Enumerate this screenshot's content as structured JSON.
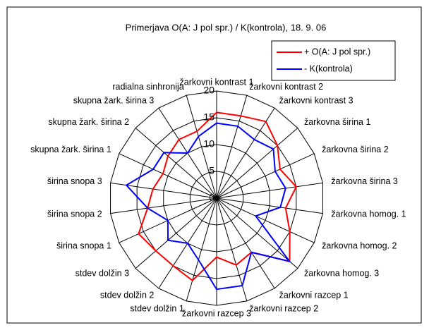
{
  "chart_data": {
    "type": "radar",
    "title": "Primerjava O(A: J pol spr.) / K(kontrola), 18. 9. 06",
    "categories": [
      "žarkovni kontrast 1",
      "žarkovni kontrast 2",
      "žarkovni kontrast 3",
      "žarkovna širina 1",
      "žarkovna širina 2",
      "žarkovna širina 3",
      "žarkovna homog. 1",
      "žarkovna homog. 2",
      "žarkovna homog. 3",
      "žarkovni razcep 1",
      "žarkovni razcep 2",
      "žarkovni razcep 3",
      "stdev dolžin 1",
      "stdev dolžin 2",
      "stdev dolžin 3",
      "širina snopa 1",
      "širina snopa 2",
      "širina snopa 3",
      "skupna žark. širina 1",
      "skupna žark. širina 2",
      "skupna žark. širina 3",
      "radialna sinhronija"
    ],
    "series": [
      {
        "name": "+ O(A: J pol spr.)",
        "color": "#ff0000",
        "values": [
          16,
          16,
          17,
          15,
          13,
          15,
          13,
          15,
          18,
          12,
          13,
          11,
          16,
          15,
          15,
          16,
          13,
          12,
          11,
          12,
          13,
          13
        ]
      },
      {
        "name": "- K(kontrola)",
        "color": "#0000ff",
        "values": [
          14,
          14,
          13,
          14,
          12,
          13,
          12,
          8,
          18,
          12,
          17,
          17,
          12,
          10,
          12,
          10,
          13,
          17,
          13,
          13,
          10,
          12
        ]
      }
    ],
    "ylim": [
      0,
      20
    ],
    "yticks": [
      0,
      5,
      10,
      15,
      20
    ],
    "grid": true,
    "legend": "top-right"
  }
}
